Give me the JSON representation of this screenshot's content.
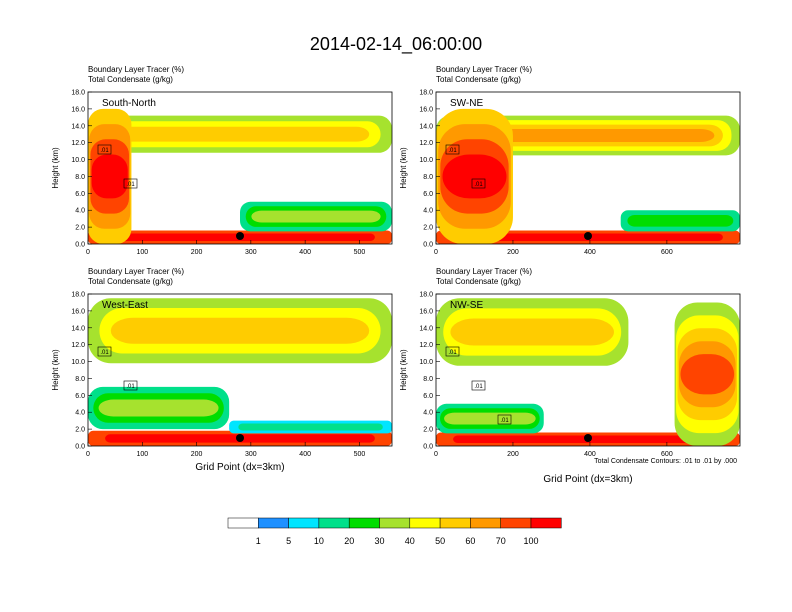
{
  "title": "2014-02-14_06:00:00",
  "panel_header_line1": "Boundary Layer Tracer    (%)",
  "panel_header_line2": "Total Condensate    (g/kg)",
  "footnote": "Total Condensate Contours: .01 to .01 by .000",
  "colors": [
    "#ffffff",
    "#1e90ff",
    "#00e5ff",
    "#00e08a",
    "#00dd00",
    "#a6e22e",
    "#ffff00",
    "#ffcc00",
    "#ff9900",
    "#ff4400",
    "#ff0000"
  ],
  "colorbar_labels": [
    "1",
    "5",
    "10",
    "20",
    "30",
    "40",
    "50",
    "60",
    "70",
    "100"
  ],
  "chart_data": [
    {
      "type": "heatmap",
      "name": "South-North",
      "xlabel": "",
      "ylabel": "Height (km)",
      "xlim": [
        0,
        560
      ],
      "ylim": [
        0,
        18
      ],
      "xticks": [
        "0",
        "100",
        "200",
        "300",
        "400",
        "500"
      ],
      "yticks": [
        "0.0",
        "2.0",
        "4.0",
        "6.0",
        "8.0",
        "10.0",
        "12.0",
        "14.0",
        "16.0",
        "18.0"
      ],
      "marker_x": 280,
      "contour_labels": [
        ".01",
        ".01"
      ],
      "bands": [
        {
          "x0": 0,
          "x1": 560,
          "y0": 10.8,
          "y1": 15.2,
          "level": "30",
          "peak": "50"
        },
        {
          "x0": 0,
          "x1": 560,
          "y0": 0,
          "y1": 1.6,
          "level": "70",
          "peak": "100"
        },
        {
          "x0": 0,
          "x1": 80,
          "y0": 0,
          "y1": 16,
          "level": "50",
          "peak": "100"
        },
        {
          "x0": 280,
          "x1": 560,
          "y0": 1.5,
          "y1": 5,
          "level": "10",
          "peak": "30"
        }
      ]
    },
    {
      "type": "heatmap",
      "name": "SW-NE",
      "xlabel": "",
      "ylabel": "Height (km)",
      "xlim": [
        0,
        790
      ],
      "ylim": [
        0,
        18
      ],
      "xticks": [
        "0",
        "200",
        "400",
        "600"
      ],
      "yticks": [
        "0.0",
        "2.0",
        "4.0",
        "6.0",
        "8.0",
        "10.0",
        "12.0",
        "14.0",
        "16.0",
        "18.0"
      ],
      "marker_x": 395,
      "contour_labels": [
        ".01",
        ".01"
      ],
      "bands": [
        {
          "x0": 0,
          "x1": 790,
          "y0": 10.5,
          "y1": 15.2,
          "level": "30",
          "peak": "60"
        },
        {
          "x0": 0,
          "x1": 790,
          "y0": 0,
          "y1": 1.6,
          "level": "70",
          "peak": "100"
        },
        {
          "x0": 0,
          "x1": 200,
          "y0": 0,
          "y1": 16,
          "level": "50",
          "peak": "100"
        },
        {
          "x0": 480,
          "x1": 790,
          "y0": 1.5,
          "y1": 4,
          "level": "10",
          "peak": "20"
        }
      ]
    },
    {
      "type": "heatmap",
      "name": "West-East",
      "xlabel": "Grid Point (dx=3km)",
      "ylabel": "Height (km)",
      "xlim": [
        0,
        560
      ],
      "ylim": [
        0,
        18
      ],
      "xticks": [
        "0",
        "100",
        "200",
        "300",
        "400",
        "500"
      ],
      "yticks": [
        "0.0",
        "2.0",
        "4.0",
        "6.0",
        "8.0",
        "10.0",
        "12.0",
        "14.0",
        "16.0",
        "18.0"
      ],
      "marker_x": 280,
      "contour_labels": [
        ".01",
        ".01"
      ],
      "bands": [
        {
          "x0": 0,
          "x1": 560,
          "y0": 9.8,
          "y1": 17.5,
          "level": "30",
          "peak": "50"
        },
        {
          "x0": 0,
          "x1": 560,
          "y0": 0,
          "y1": 1.8,
          "level": "70",
          "peak": "100"
        },
        {
          "x0": 0,
          "x1": 260,
          "y0": 2,
          "y1": 7,
          "level": "10",
          "peak": "30"
        },
        {
          "x0": 260,
          "x1": 560,
          "y0": 1.5,
          "y1": 3,
          "level": "5",
          "peak": "10"
        }
      ]
    },
    {
      "type": "heatmap",
      "name": "NW-SE",
      "xlabel": "Grid Point (dx=3km)",
      "ylabel": "Height (km)",
      "xlim": [
        0,
        790
      ],
      "ylim": [
        0,
        18
      ],
      "xticks": [
        "0",
        "200",
        "400",
        "600"
      ],
      "yticks": [
        "0.0",
        "2.0",
        "4.0",
        "6.0",
        "8.0",
        "10.0",
        "12.0",
        "14.0",
        "16.0",
        "18.0"
      ],
      "marker_x": 395,
      "contour_labels": [
        ".01",
        ".01",
        ".01"
      ],
      "bands": [
        {
          "x0": 0,
          "x1": 500,
          "y0": 9.5,
          "y1": 17.5,
          "level": "30",
          "peak": "50"
        },
        {
          "x0": 0,
          "x1": 790,
          "y0": 0,
          "y1": 1.6,
          "level": "70",
          "peak": "100"
        },
        {
          "x0": 620,
          "x1": 790,
          "y0": 0,
          "y1": 17,
          "level": "30",
          "peak": "70"
        },
        {
          "x0": 0,
          "x1": 280,
          "y0": 1.5,
          "y1": 5,
          "level": "10",
          "peak": "30"
        }
      ]
    }
  ]
}
